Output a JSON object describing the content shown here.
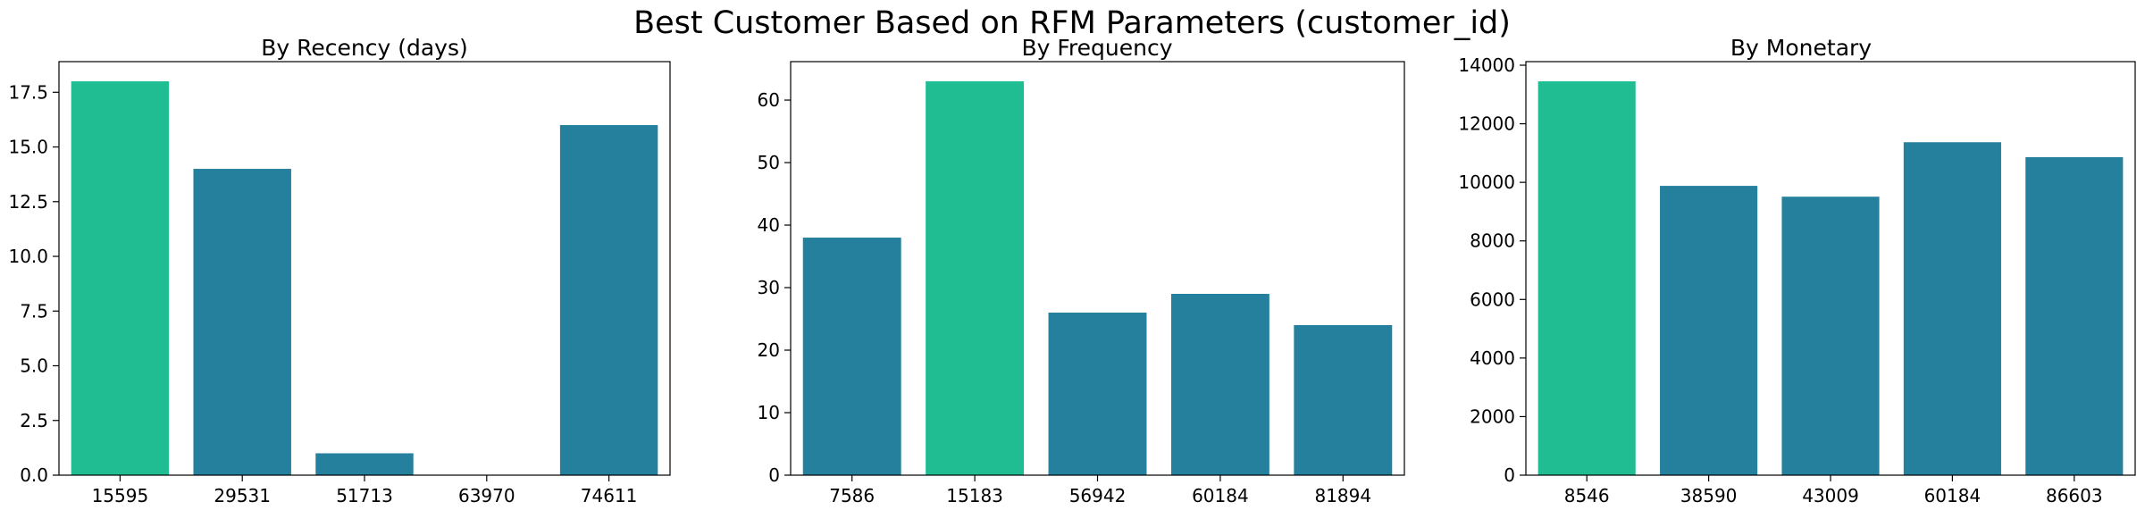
{
  "suptitle": "Best Customer Based on RFM Parameters (customer_id)",
  "colors": {
    "highlight": "#20bd93",
    "base": "#25809d"
  },
  "chart_data": [
    {
      "type": "bar",
      "title": "By Recency (days)",
      "categories": [
        "15595",
        "29531",
        "51713",
        "63970",
        "74611"
      ],
      "values": [
        18,
        14,
        1,
        0,
        16
      ],
      "ylim": [
        0,
        18.9
      ],
      "yticks": [
        0,
        2.5,
        5,
        7.5,
        10,
        12.5,
        15,
        17.5
      ],
      "ytick_labels": [
        "0.0",
        "2.5",
        "5.0",
        "7.5",
        "10.0",
        "12.5",
        "15.0",
        "17.5"
      ],
      "highlight_index": 0,
      "grid": false
    },
    {
      "type": "bar",
      "title": "By Frequency",
      "categories": [
        "7586",
        "15183",
        "56942",
        "60184",
        "81894"
      ],
      "values": [
        38,
        63,
        26,
        29,
        24
      ],
      "ylim": [
        0,
        66.15
      ],
      "yticks": [
        0,
        10,
        20,
        30,
        40,
        50,
        60
      ],
      "ytick_labels": [
        "0",
        "10",
        "20",
        "30",
        "40",
        "50",
        "60"
      ],
      "highlight_index": 1,
      "grid": false
    },
    {
      "type": "bar",
      "title": "By Monetary",
      "categories": [
        "8546",
        "38590",
        "43009",
        "60184",
        "86603"
      ],
      "values": [
        13450,
        9880,
        9510,
        11370,
        10860
      ],
      "ylim": [
        0,
        14122.5
      ],
      "yticks": [
        0,
        2000,
        4000,
        6000,
        8000,
        10000,
        12000,
        14000
      ],
      "ytick_labels": [
        "0",
        "2000",
        "4000",
        "6000",
        "8000",
        "10000",
        "12000",
        "14000"
      ],
      "highlight_index": 0,
      "grid": false
    }
  ]
}
